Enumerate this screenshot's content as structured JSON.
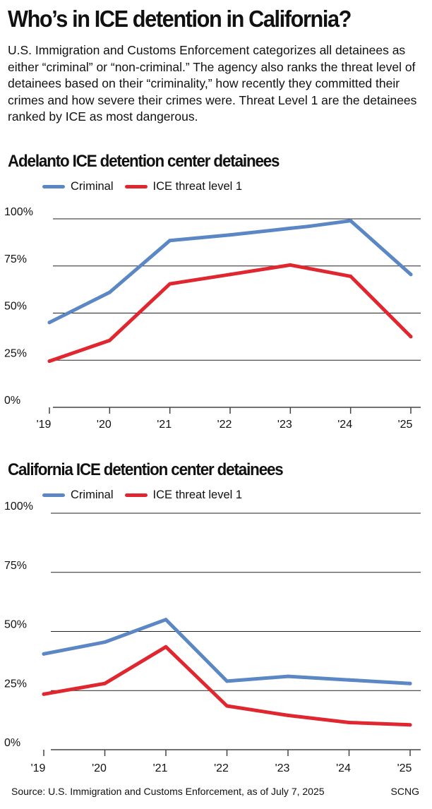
{
  "title": "Who’s in ICE detention in California?",
  "intro": "U.S. Immigration and Customs Enforcement categorizes all detainees as either “criminal” or “non-criminal.” The agency also ranks the threat level of detainees based on their “criminality,” how recently they committed their crimes and how severe their crimes were. Threat Level 1 are the detainees ranked by ICE as most dangerous.",
  "source": "Source: U.S. Immigration and Customs Enforcement, as of July 7, 2025",
  "credit": "SCNG",
  "colors": {
    "criminal": "#5b87c5",
    "threat": "#e0262e",
    "grid": "#222222",
    "axis": "#444444"
  },
  "chart_data": [
    {
      "type": "line",
      "title": "Adelanto ICE detention center detainees",
      "categories": [
        "'19",
        "'20",
        "'21",
        "'22",
        "'23",
        "'24",
        "'25"
      ],
      "yticks": [
        "0%",
        "25%",
        "50%",
        "75%",
        "100%"
      ],
      "ylim": [
        0,
        100
      ],
      "grid": true,
      "legend_position": "top",
      "series": [
        {
          "name": "Criminal",
          "color": "#5b87c5",
          "points": [
            [
              2019.0,
              45
            ],
            [
              2020.0,
              61
            ],
            [
              2021.0,
              88.5
            ],
            [
              2022.0,
              91.5
            ],
            [
              2023.0,
              95
            ],
            [
              2023.3,
              96
            ],
            [
              2024.0,
              99
            ],
            [
              2025.0,
              70.5
            ]
          ]
        },
        {
          "name": "ICE threat level 1",
          "color": "#e0262e",
          "points": [
            [
              2019.0,
              24.5
            ],
            [
              2020.0,
              35.5
            ],
            [
              2021.0,
              65.5
            ],
            [
              2022.0,
              70.5
            ],
            [
              2023.0,
              75.5
            ],
            [
              2024.0,
              69.5
            ],
            [
              2025.0,
              37.5
            ]
          ]
        }
      ]
    },
    {
      "type": "line",
      "title": "California ICE detention center detainees",
      "categories": [
        "'19",
        "'20",
        "'21",
        "'22",
        "'23",
        "'24",
        "'25"
      ],
      "yticks": [
        "0%",
        "25%",
        "50%",
        "75%",
        "100%"
      ],
      "ylim": [
        0,
        100
      ],
      "grid": true,
      "legend_position": "top",
      "series": [
        {
          "name": "Criminal",
          "color": "#5b87c5",
          "points": [
            [
              2019.0,
              40.5
            ],
            [
              2020.0,
              45.5
            ],
            [
              2021.0,
              55
            ],
            [
              2022.0,
              29
            ],
            [
              2023.0,
              31
            ],
            [
              2024.0,
              29.5
            ],
            [
              2025.0,
              28
            ]
          ]
        },
        {
          "name": "ICE threat level 1",
          "color": "#e0262e",
          "points": [
            [
              2019.0,
              23.5
            ],
            [
              2020.0,
              28
            ],
            [
              2021.0,
              43.5
            ],
            [
              2022.0,
              18.5
            ],
            [
              2023.0,
              14.5
            ],
            [
              2024.0,
              11.5
            ],
            [
              2025.0,
              10.5
            ]
          ]
        }
      ]
    }
  ]
}
